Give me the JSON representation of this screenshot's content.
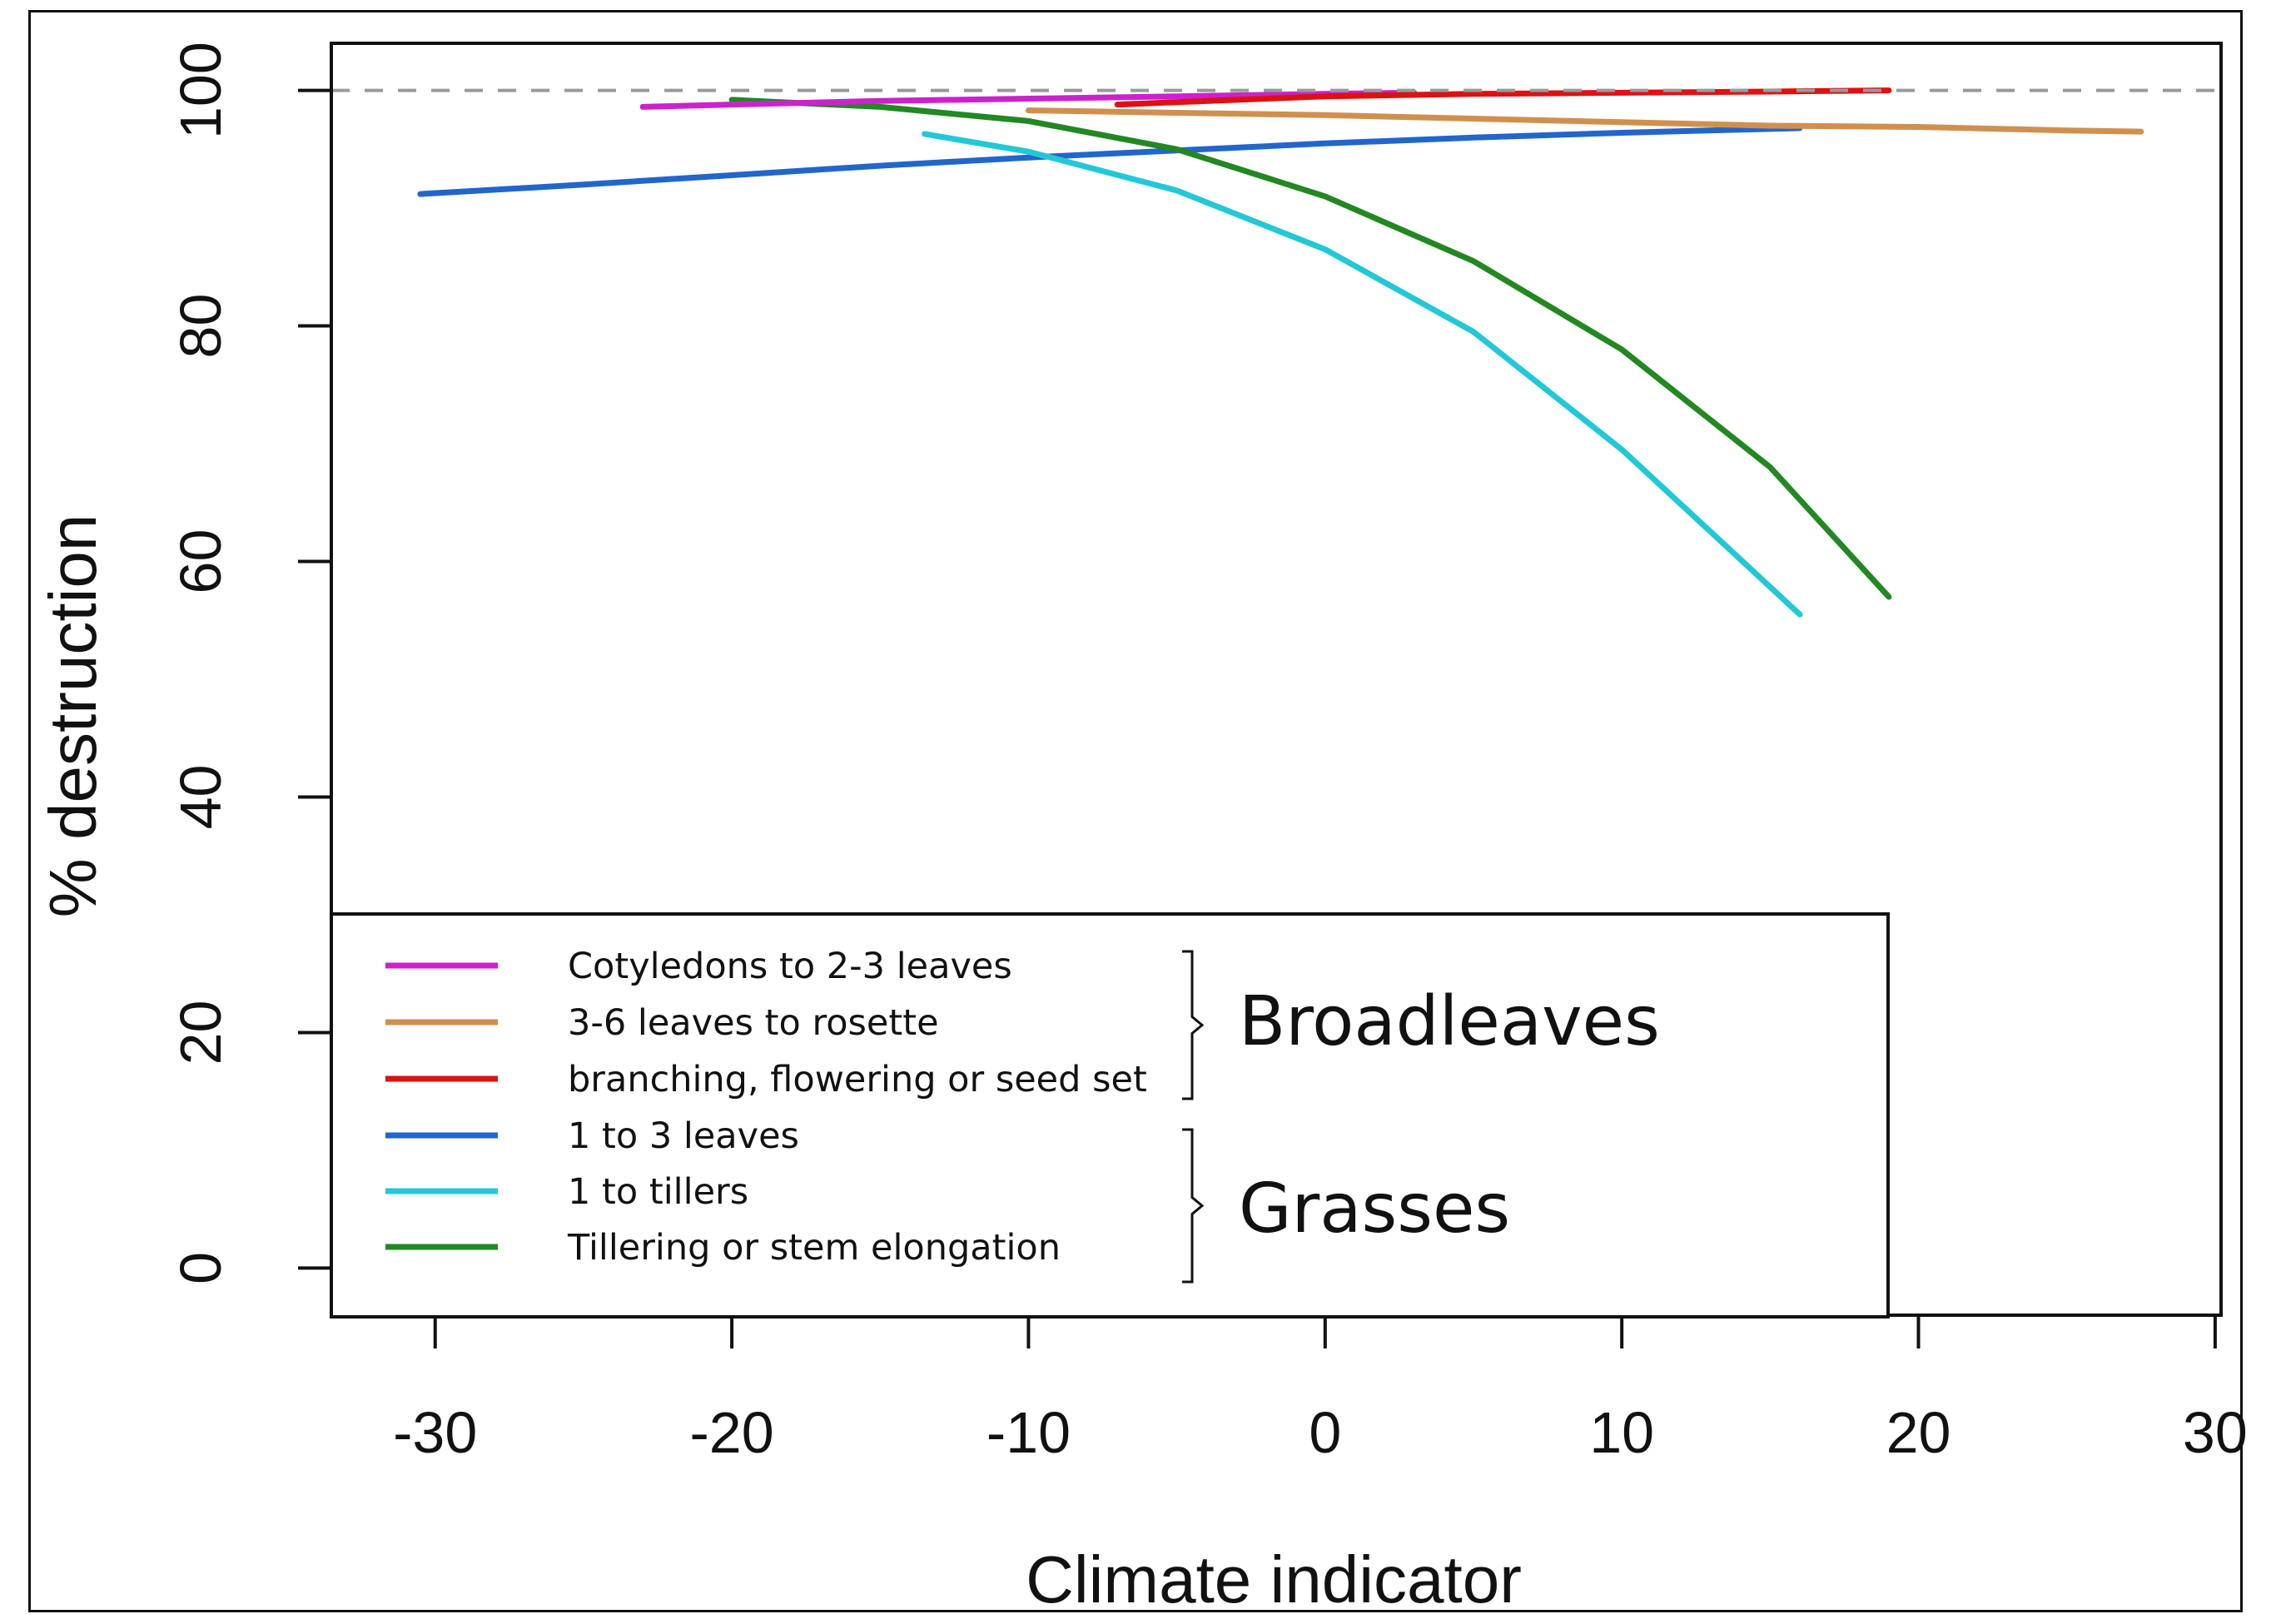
{
  "chart_data": {
    "type": "line",
    "title": "",
    "xlabel": "Climate indicator",
    "ylabel": "% destruction",
    "xlim": [
      -33.5,
      30.2
    ],
    "ylim": [
      -4,
      104
    ],
    "x_ticks": [
      -30,
      -20,
      -10,
      0,
      10,
      20,
      30
    ],
    "y_ticks": [
      0,
      20,
      40,
      60,
      80,
      100
    ],
    "reference_line": {
      "y": 100,
      "style": "dashed",
      "color": "#9a9a9a"
    },
    "grid": false,
    "legend": {
      "placement": "bottom-left",
      "groups": [
        {
          "label": "Broadleaves",
          "series": [
            "Cotyledons to 2-3 leaves",
            "3-6 leaves to rosette",
            "branching, flowering or seed set"
          ]
        },
        {
          "label": "Grasses",
          "series": [
            "1 to 3 leaves",
            "1 to tillers",
            "Tillering or stem elongation"
          ]
        }
      ]
    },
    "series": [
      {
        "name": "Cotyledons to 2-3 leaves",
        "color": "#cc22cc",
        "x": [
          -23,
          -20,
          -15,
          -10,
          -5,
          0,
          3
        ],
        "y": [
          98.6,
          98.8,
          99.1,
          99.3,
          99.5,
          99.7,
          99.8
        ]
      },
      {
        "name": "3-6 leaves to rosette",
        "color": "#d18f4f",
        "x": [
          -10,
          -5,
          0,
          5,
          10,
          15,
          20,
          25,
          27.5
        ],
        "y": [
          98.3,
          98.1,
          97.9,
          97.6,
          97.3,
          97.0,
          96.9,
          96.6,
          96.5
        ]
      },
      {
        "name": "branching, flowering or seed set",
        "color": "#dd1111",
        "x": [
          -7,
          -5,
          -2,
          0,
          5,
          10,
          15,
          19
        ],
        "y": [
          98.8,
          99.0,
          99.3,
          99.5,
          99.7,
          99.8,
          99.9,
          100
        ]
      },
      {
        "name": "1 to 3 leaves",
        "color": "#2266cc",
        "x": [
          -30.5,
          -25,
          -20,
          -15,
          -10,
          -5,
          0,
          5,
          10,
          16
        ],
        "y": [
          91.2,
          92.0,
          92.8,
          93.6,
          94.3,
          94.9,
          95.5,
          96.0,
          96.4,
          96.8
        ]
      },
      {
        "name": "1 to tillers",
        "color": "#22c8d8",
        "x": [
          -13.5,
          -10,
          -5,
          0,
          5,
          10,
          13,
          16
        ],
        "y": [
          96.3,
          94.8,
          91.5,
          86.5,
          79.5,
          69.5,
          62.5,
          55.5
        ]
      },
      {
        "name": "Tillering or stem elongation",
        "color": "#228822",
        "x": [
          -20,
          -15,
          -10,
          -5,
          0,
          5,
          10,
          15,
          19
        ],
        "y": [
          99.2,
          98.6,
          97.4,
          95.0,
          91.0,
          85.5,
          78.0,
          68.0,
          57.0
        ]
      }
    ]
  }
}
